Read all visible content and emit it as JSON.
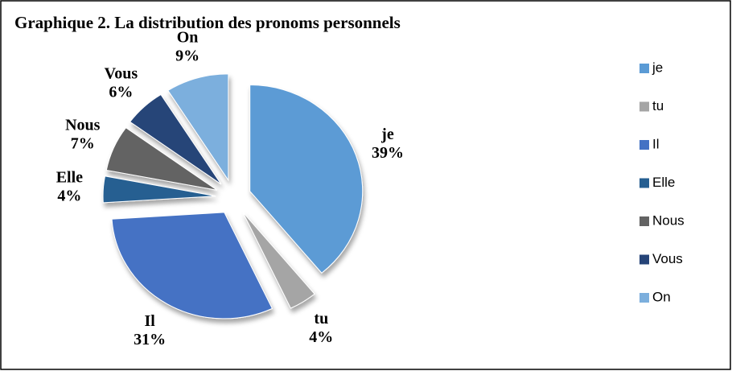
{
  "chart_data": {
    "type": "pie",
    "title": "Graphique 2. La distribution des pronoms personnels",
    "categories": [
      "je",
      "tu",
      "Il",
      "Elle",
      "Nous",
      "Vous",
      "On"
    ],
    "values": [
      39,
      4,
      31,
      4,
      7,
      6,
      9
    ],
    "value_labels": [
      "39%",
      "4%",
      "31%",
      "4%",
      "7%",
      "6%",
      "9%"
    ],
    "colors": [
      "#5b9bd5",
      "#a5a5a5",
      "#4472c4",
      "#255e91",
      "#636363",
      "#264478",
      "#7cafdd"
    ],
    "legend": "right"
  }
}
